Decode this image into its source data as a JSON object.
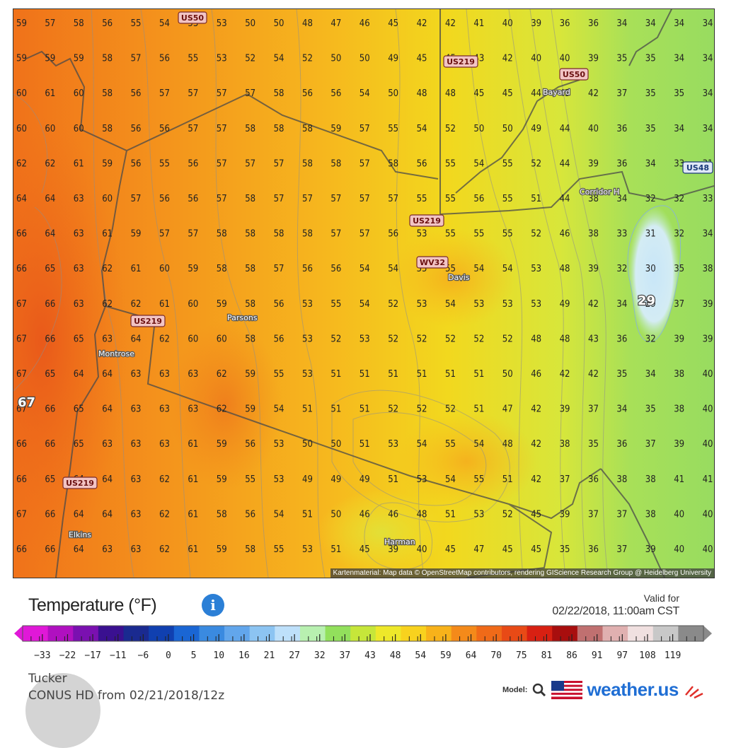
{
  "map": {
    "attribution": "Kartenmaterial: Map data © OpenStreetMap contributors, rendering GIScience Research Group @ Heidelberg University",
    "rows": [
      [
        "59",
        "57",
        "58",
        "56",
        "55",
        "54",
        "53",
        "53",
        "50",
        "50",
        "48",
        "47",
        "46",
        "45",
        "42",
        "42",
        "41",
        "40",
        "39",
        "36",
        "36",
        "34",
        "34",
        "34",
        "34"
      ],
      [
        "59",
        "59",
        "59",
        "58",
        "57",
        "56",
        "55",
        "53",
        "52",
        "54",
        "52",
        "50",
        "50",
        "49",
        "45",
        "45",
        "43",
        "42",
        "40",
        "40",
        "39",
        "35",
        "35",
        "34",
        "34"
      ],
      [
        "60",
        "61",
        "60",
        "58",
        "56",
        "57",
        "57",
        "57",
        "57",
        "58",
        "56",
        "56",
        "54",
        "50",
        "48",
        "48",
        "45",
        "45",
        "44",
        "43",
        "42",
        "37",
        "35",
        "35",
        "34"
      ],
      [
        "60",
        "60",
        "60",
        "58",
        "56",
        "56",
        "57",
        "57",
        "58",
        "58",
        "58",
        "59",
        "57",
        "55",
        "54",
        "52",
        "50",
        "50",
        "49",
        "44",
        "40",
        "36",
        "35",
        "34",
        "34"
      ],
      [
        "62",
        "62",
        "61",
        "59",
        "56",
        "55",
        "56",
        "57",
        "57",
        "57",
        "58",
        "58",
        "57",
        "58",
        "56",
        "55",
        "54",
        "55",
        "52",
        "44",
        "39",
        "36",
        "34",
        "33",
        "31"
      ],
      [
        "64",
        "64",
        "63",
        "60",
        "57",
        "56",
        "56",
        "57",
        "58",
        "57",
        "57",
        "57",
        "57",
        "57",
        "55",
        "55",
        "56",
        "55",
        "51",
        "44",
        "38",
        "34",
        "32",
        "32",
        "33"
      ],
      [
        "66",
        "64",
        "63",
        "61",
        "59",
        "57",
        "57",
        "58",
        "58",
        "58",
        "58",
        "57",
        "57",
        "56",
        "53",
        "55",
        "55",
        "55",
        "52",
        "46",
        "38",
        "33",
        "31",
        "32",
        "34"
      ],
      [
        "66",
        "65",
        "63",
        "62",
        "61",
        "60",
        "59",
        "58",
        "58",
        "57",
        "56",
        "56",
        "54",
        "54",
        "55",
        "55",
        "54",
        "54",
        "53",
        "48",
        "39",
        "32",
        "30",
        "35",
        "38"
      ],
      [
        "67",
        "66",
        "63",
        "62",
        "62",
        "61",
        "60",
        "59",
        "58",
        "56",
        "53",
        "55",
        "54",
        "52",
        "53",
        "54",
        "53",
        "53",
        "53",
        "49",
        "42",
        "34",
        "29",
        "37",
        "39"
      ],
      [
        "67",
        "66",
        "65",
        "63",
        "64",
        "62",
        "60",
        "60",
        "58",
        "56",
        "53",
        "52",
        "53",
        "52",
        "52",
        "52",
        "52",
        "52",
        "48",
        "48",
        "43",
        "36",
        "32",
        "39",
        "39"
      ],
      [
        "67",
        "65",
        "64",
        "64",
        "63",
        "63",
        "63",
        "62",
        "59",
        "55",
        "53",
        "51",
        "51",
        "51",
        "51",
        "51",
        "51",
        "50",
        "46",
        "42",
        "42",
        "35",
        "34",
        "38",
        "40"
      ],
      [
        "67",
        "66",
        "65",
        "64",
        "63",
        "63",
        "63",
        "62",
        "59",
        "54",
        "51",
        "51",
        "51",
        "52",
        "52",
        "52",
        "51",
        "47",
        "42",
        "39",
        "37",
        "34",
        "35",
        "38",
        "40"
      ],
      [
        "66",
        "66",
        "65",
        "63",
        "63",
        "63",
        "61",
        "59",
        "56",
        "53",
        "50",
        "50",
        "51",
        "53",
        "54",
        "55",
        "54",
        "48",
        "42",
        "38",
        "35",
        "36",
        "37",
        "39",
        "40"
      ],
      [
        "66",
        "65",
        "64",
        "64",
        "63",
        "62",
        "61",
        "59",
        "55",
        "53",
        "49",
        "49",
        "49",
        "51",
        "53",
        "54",
        "55",
        "51",
        "42",
        "37",
        "36",
        "38",
        "38",
        "41",
        "41"
      ],
      [
        "67",
        "66",
        "64",
        "64",
        "63",
        "62",
        "61",
        "58",
        "56",
        "54",
        "51",
        "50",
        "46",
        "46",
        "48",
        "51",
        "53",
        "52",
        "45",
        "39",
        "37",
        "37",
        "38",
        "40",
        "40"
      ],
      [
        "66",
        "66",
        "64",
        "63",
        "63",
        "62",
        "61",
        "59",
        "58",
        "55",
        "53",
        "51",
        "45",
        "39",
        "40",
        "45",
        "47",
        "45",
        "45",
        "35",
        "36",
        "37",
        "39",
        "40",
        "40"
      ]
    ],
    "highlight": {
      "west": "67",
      "east": "29"
    },
    "shields": [
      "US50",
      "US219",
      "US50",
      "US48",
      "US219",
      "WV32",
      "US219",
      "US219"
    ],
    "towns": [
      "Bayard",
      "Corridor H",
      "Davis",
      "Parsons",
      "Montrose",
      "Elkins",
      "Harman"
    ]
  },
  "legend": {
    "title": "Temperature (°F)",
    "valid_for": "Valid for",
    "valid_time": "02/22/2018, 11:00am CST",
    "scale": [
      "−33",
      "−22",
      "−17",
      "−11",
      "−6",
      "0",
      "5",
      "10",
      "16",
      "21",
      "27",
      "32",
      "37",
      "43",
      "48",
      "54",
      "59",
      "64",
      "70",
      "75",
      "81",
      "86",
      "91",
      "97",
      "108",
      "119"
    ],
    "colors": [
      "#e018d8",
      "#b010c0",
      "#7a10b0",
      "#3a1090",
      "#1a2a90",
      "#1040b0",
      "#1a66d4",
      "#3a8ae0",
      "#62a6ec",
      "#8cc4f2",
      "#bee0fa",
      "#b8f0b0",
      "#92e05c",
      "#c6e63a",
      "#eee82a",
      "#f8d21e",
      "#f8b21a",
      "#f48a1a",
      "#f06a18",
      "#e84a16",
      "#d82012",
      "#a80e0e",
      "#c07070",
      "#e0b0b0",
      "#f0e0e0",
      "#c8c8c8",
      "#8a8a8a"
    ],
    "station": "Tucker",
    "model_run": "CONUS HD from 02/21/2018/12z",
    "model_label": "Model:",
    "brand": "weather.us"
  }
}
